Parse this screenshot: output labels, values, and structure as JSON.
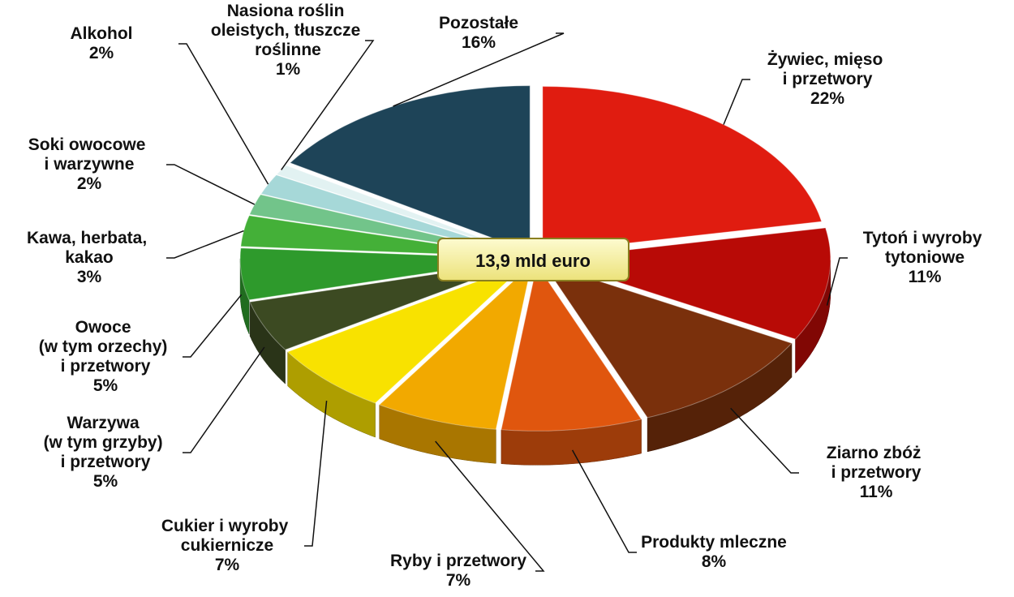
{
  "chart_data": {
    "type": "pie",
    "annotation": "13,9 mld euro",
    "categories": [
      "Żywiec, mięso\ni przetwory",
      "Tytoń i wyroby\ntytoniowe",
      "Ziarno zbóż\ni przetwory",
      "Produkty mleczne",
      "Ryby i przetwory",
      "Cukier i wyroby\ncukiernicze",
      "Warzywa\n(w tym grzyby)\ni przetwory",
      "Owoce\n(w tym orzechy)\ni przetwory",
      "Kawa, herbata,\nkakao",
      "Soki owocowe\ni warzywne",
      "Alkohol",
      "Nasiona roślin\noleistych, tłuszcze\nroślinne",
      "Pozostałe"
    ],
    "values": [
      22,
      11,
      11,
      8,
      7,
      7,
      5,
      5,
      3,
      2,
      2,
      1,
      16
    ],
    "value_labels": [
      "22%",
      "11%",
      "11%",
      "8%",
      "7%",
      "7%",
      "5%",
      "5%",
      "3%",
      "2%",
      "2%",
      "1%",
      "16%"
    ],
    "colors": [
      "#e01c10",
      "#b80a06",
      "#7a300c",
      "#e0560e",
      "#f2a900",
      "#f8e200",
      "#3c4a22",
      "#2e9a2c",
      "#44b038",
      "#72c48a",
      "#a6d8d8",
      "#e2f2f2",
      "#1e4458"
    ]
  }
}
